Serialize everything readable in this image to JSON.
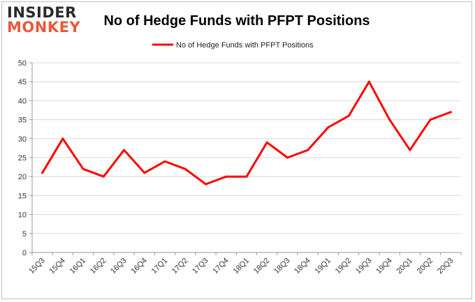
{
  "logo": {
    "line1": "INSIDER",
    "line2": "MONKEY"
  },
  "chart_data": {
    "type": "line",
    "title": "No of Hedge Funds with PFPT Positions",
    "categories": [
      "15Q3",
      "15Q4",
      "16Q1",
      "16Q2",
      "16Q3",
      "16Q4",
      "17Q1",
      "17Q2",
      "17Q3",
      "17Q4",
      "18Q1",
      "18Q2",
      "18Q3",
      "18Q4",
      "19Q1",
      "19Q2",
      "19Q3",
      "19Q4",
      "20Q1",
      "20Q2",
      "20Q3"
    ],
    "series": [
      {
        "name": "No of Hedge Funds with PFPT Positions",
        "color": "#ff0000",
        "values": [
          21,
          30,
          22,
          20,
          27,
          21,
          24,
          22,
          18,
          20,
          20,
          29,
          25,
          27,
          33,
          36,
          45,
          35,
          27,
          35,
          37
        ]
      }
    ],
    "yticks": [
      0,
      5,
      10,
      15,
      20,
      25,
      30,
      35,
      40,
      45,
      50
    ],
    "ylim": [
      0,
      50
    ],
    "grid": true,
    "legend": "top-center"
  }
}
